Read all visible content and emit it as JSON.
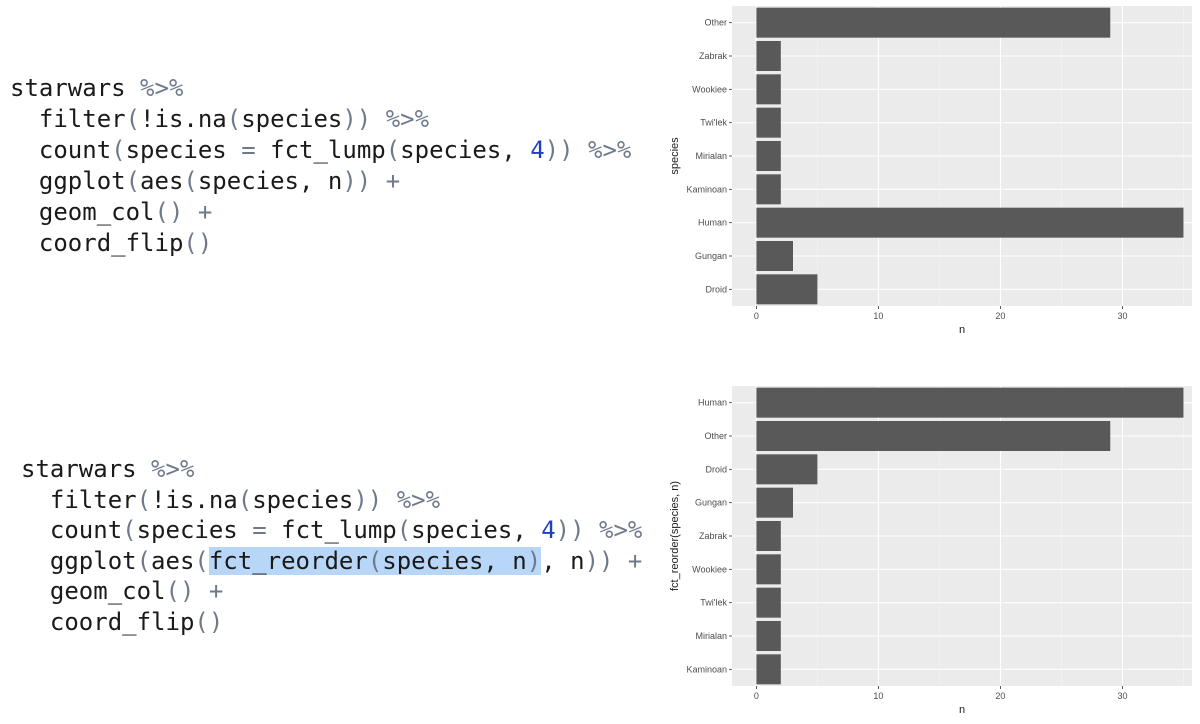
{
  "code_blocks": [
    {
      "lines": [
        [
          {
            "t": "starwars"
          },
          {
            "t": " %>%",
            "c": "op"
          }
        ],
        [
          {
            "t": "  filter"
          },
          {
            "t": "(",
            "c": "op"
          },
          {
            "t": "!is.na"
          },
          {
            "t": "(",
            "c": "op"
          },
          {
            "t": "species"
          },
          {
            "t": "))",
            "c": "op"
          },
          {
            "t": " %>%",
            "c": "op"
          }
        ],
        [
          {
            "t": "  count"
          },
          {
            "t": "(",
            "c": "op"
          },
          {
            "t": "species"
          },
          {
            "t": " = ",
            "c": "op"
          },
          {
            "t": "fct_lump"
          },
          {
            "t": "(",
            "c": "op"
          },
          {
            "t": "species, "
          },
          {
            "t": "4",
            "c": "num"
          },
          {
            "t": "))",
            "c": "op"
          },
          {
            "t": " %>%",
            "c": "op"
          }
        ],
        [
          {
            "t": "  ggplot"
          },
          {
            "t": "(",
            "c": "op"
          },
          {
            "t": "aes"
          },
          {
            "t": "(",
            "c": "op"
          },
          {
            "t": "species, n"
          },
          {
            "t": "))",
            "c": "op"
          },
          {
            "t": " +",
            "c": "op"
          }
        ],
        [
          {
            "t": "  geom_col"
          },
          {
            "t": "()",
            "c": "op"
          },
          {
            "t": " +",
            "c": "op"
          }
        ],
        [
          {
            "t": "  coord_flip"
          },
          {
            "t": "()",
            "c": "op"
          }
        ]
      ]
    },
    {
      "lines": [
        [
          {
            "t": "starwars"
          },
          {
            "t": " %>%",
            "c": "op"
          }
        ],
        [
          {
            "t": "  filter"
          },
          {
            "t": "(",
            "c": "op"
          },
          {
            "t": "!is.na"
          },
          {
            "t": "(",
            "c": "op"
          },
          {
            "t": "species"
          },
          {
            "t": "))",
            "c": "op"
          },
          {
            "t": " %>%",
            "c": "op"
          }
        ],
        [
          {
            "t": "  count"
          },
          {
            "t": "(",
            "c": "op"
          },
          {
            "t": "species"
          },
          {
            "t": " = ",
            "c": "op"
          },
          {
            "t": "fct_lump"
          },
          {
            "t": "(",
            "c": "op"
          },
          {
            "t": "species, "
          },
          {
            "t": "4",
            "c": "num"
          },
          {
            "t": "))",
            "c": "op"
          },
          {
            "t": " %>%",
            "c": "op"
          }
        ],
        [
          {
            "t": "  ggplot"
          },
          {
            "t": "(",
            "c": "op"
          },
          {
            "t": "aes"
          },
          {
            "t": "(",
            "c": "op"
          },
          {
            "t": "fct_reorder",
            "hl": true
          },
          {
            "t": "(",
            "c": "op",
            "hl": true
          },
          {
            "t": "species, n",
            "hl": true
          },
          {
            "t": ")",
            "c": "op",
            "hl": true
          },
          {
            "t": ", n"
          },
          {
            "t": "))",
            "c": "op"
          },
          {
            "t": " +",
            "c": "op"
          }
        ],
        [
          {
            "t": "  geom_col"
          },
          {
            "t": "()",
            "c": "op"
          },
          {
            "t": " +",
            "c": "op"
          }
        ],
        [
          {
            "t": "  coord_flip"
          },
          {
            "t": "()",
            "c": "op"
          }
        ]
      ]
    }
  ],
  "colors": {
    "panel": "#ebebeb",
    "grid_major": "#ffffff",
    "grid_minor": "#f5f5f5",
    "bar": "#595959",
    "tick": "#333333"
  },
  "chart_data": [
    {
      "type": "bar",
      "orientation": "horizontal",
      "categories": [
        "Other",
        "Zabrak",
        "Wookiee",
        "Twi'lek",
        "Mirialan",
        "Kaminoan",
        "Human",
        "Gungan",
        "Droid"
      ],
      "values": [
        29,
        2,
        2,
        2,
        2,
        2,
        35,
        3,
        5
      ],
      "xlabel": "n",
      "ylabel": "species",
      "xlim": [
        -2,
        35.7
      ],
      "xticks": [
        0,
        10,
        20,
        30
      ],
      "grid": true
    },
    {
      "type": "bar",
      "orientation": "horizontal",
      "categories": [
        "Human",
        "Other",
        "Droid",
        "Gungan",
        "Zabrak",
        "Wookiee",
        "Twi'lek",
        "Mirialan",
        "Kaminoan"
      ],
      "values": [
        35,
        29,
        5,
        3,
        2,
        2,
        2,
        2,
        2
      ],
      "xlabel": "n",
      "ylabel": "fct_reorder(species, n)",
      "xlim": [
        -2,
        35.7
      ],
      "xticks": [
        0,
        10,
        20,
        30
      ],
      "grid": true
    }
  ]
}
